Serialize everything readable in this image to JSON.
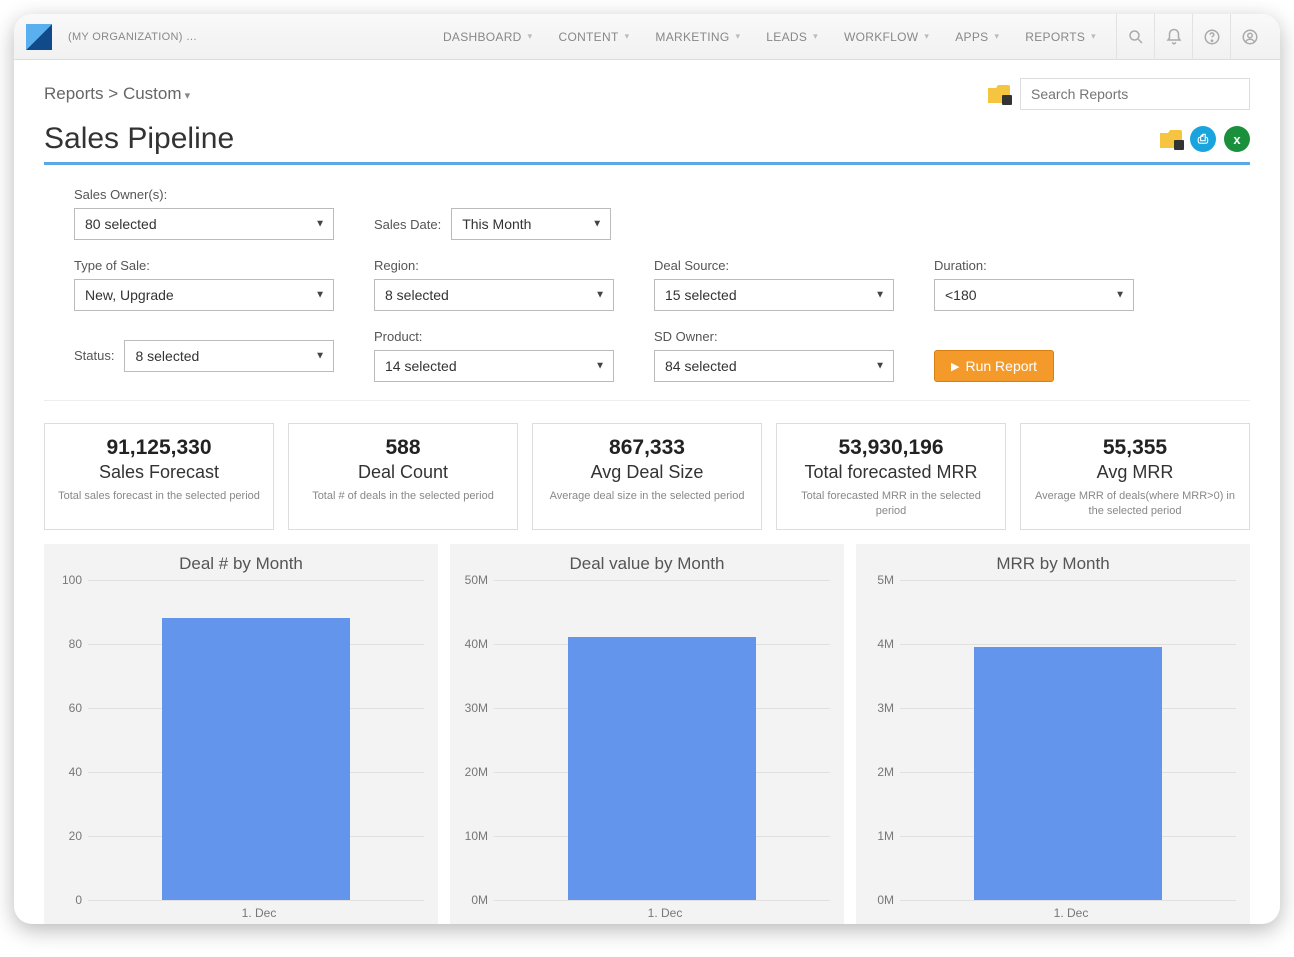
{
  "nav": {
    "org": "(MY ORGANIZATION) …",
    "items": [
      "DASHBOARD",
      "CONTENT",
      "MARKETING",
      "LEADS",
      "WORKFLOW",
      "APPS",
      "REPORTS"
    ]
  },
  "breadcrumb": {
    "root": "Reports",
    "sep": ">",
    "leaf": "Custom"
  },
  "search_placeholder": "Search Reports",
  "page_title": "Sales Pipeline",
  "filters": {
    "sales_owner": {
      "label": "Sales Owner(s):",
      "value": "80 selected"
    },
    "sales_date": {
      "label": "Sales Date:",
      "value": "This Month"
    },
    "sale_type": {
      "label": "Type of Sale:",
      "value": "New, Upgrade"
    },
    "region": {
      "label": "Region:",
      "value": "8 selected"
    },
    "deal_source": {
      "label": "Deal Source:",
      "value": "15 selected"
    },
    "duration": {
      "label": "Duration:",
      "value": "<180"
    },
    "status": {
      "label": "Status:",
      "value": "8 selected"
    },
    "product": {
      "label": "Product:",
      "value": "14 selected"
    },
    "sd_owner": {
      "label": "SD Owner:",
      "value": "84 selected"
    },
    "run_label": "Run Report"
  },
  "kpis": [
    {
      "value": "91,125,330",
      "name": "Sales Forecast",
      "desc": "Total sales forecast in the selected period"
    },
    {
      "value": "588",
      "name": "Deal Count",
      "desc": "Total # of deals in the selected period"
    },
    {
      "value": "867,333",
      "name": "Avg Deal Size",
      "desc": "Average deal size in the selected period"
    },
    {
      "value": "53,930,196",
      "name": "Total forecasted MRR",
      "desc": "Total forecasted MRR in the selected period"
    },
    {
      "value": "55,355",
      "name": "Avg MRR",
      "desc": "Average MRR of deals(where MRR>0) in the selected period"
    }
  ],
  "charts": [
    {
      "type": "bar",
      "title": "Deal # by Month",
      "categories": [
        "1. Dec"
      ],
      "values": [
        88
      ],
      "ylim": [
        0,
        100
      ],
      "yticks": [
        0,
        20,
        40,
        60,
        80,
        100
      ],
      "ytick_labels": [
        "0",
        "20",
        "40",
        "60",
        "80",
        "100"
      ],
      "bar_color": "#6495ed",
      "background_color": "#f3f3f3",
      "grid_color": "#e0e0e0",
      "bar_width": 0.56,
      "title_fontsize": 17,
      "label_fontsize": 12
    },
    {
      "type": "bar",
      "title": "Deal value by Month",
      "categories": [
        "1. Dec"
      ],
      "values": [
        41000000
      ],
      "ylim": [
        0,
        50000000
      ],
      "yticks": [
        0,
        10000000,
        20000000,
        30000000,
        40000000,
        50000000
      ],
      "ytick_labels": [
        "0M",
        "10M",
        "20M",
        "30M",
        "40M",
        "50M"
      ],
      "bar_color": "#6495ed",
      "background_color": "#f3f3f3",
      "grid_color": "#e0e0e0",
      "bar_width": 0.56,
      "title_fontsize": 17,
      "label_fontsize": 12
    },
    {
      "type": "bar",
      "title": "MRR by Month",
      "categories": [
        "1. Dec"
      ],
      "values": [
        3950000
      ],
      "ylim": [
        0,
        5000000
      ],
      "yticks": [
        0,
        1000000,
        2000000,
        3000000,
        4000000,
        5000000
      ],
      "ytick_labels": [
        "0M",
        "1M",
        "2M",
        "3M",
        "4M",
        "5M"
      ],
      "bar_color": "#6495ed",
      "background_color": "#f3f3f3",
      "grid_color": "#e0e0e0",
      "bar_width": 0.56,
      "title_fontsize": 17,
      "label_fontsize": 12
    }
  ]
}
